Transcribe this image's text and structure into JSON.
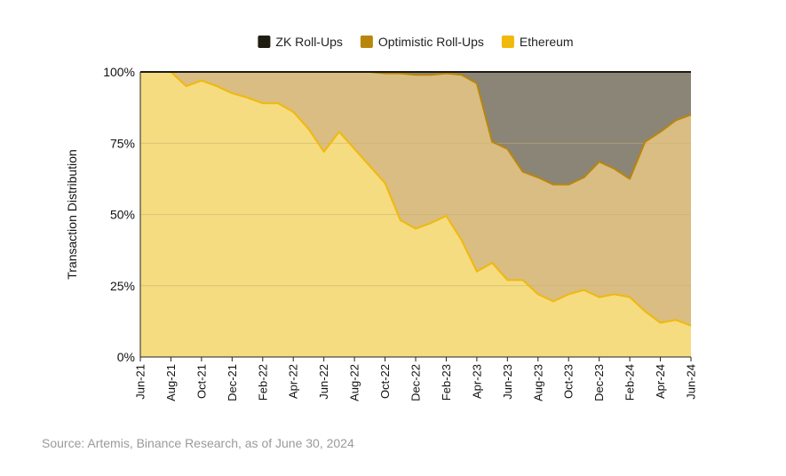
{
  "legend": [
    {
      "label": "ZK Roll-Ups",
      "color": "#1f1d12"
    },
    {
      "label": "Optimistic Roll-Ups",
      "color": "#b8860b"
    },
    {
      "label": "Ethereum",
      "color": "#f0b90b"
    }
  ],
  "source": "Source: Artemis, Binance Research, as of June 30, 2024",
  "chart_data": {
    "type": "area",
    "stacked": true,
    "ylabel": "Transaction Distribution",
    "xlabel": "",
    "ylim": [
      0,
      100
    ],
    "y_ticks": [
      "0%",
      "25%",
      "50%",
      "75%",
      "100%"
    ],
    "x": [
      "Jun-21",
      "Jul-21",
      "Aug-21",
      "Sep-21",
      "Oct-21",
      "Nov-21",
      "Dec-21",
      "Jan-22",
      "Feb-22",
      "Mar-22",
      "Apr-22",
      "May-22",
      "Jun-22",
      "Jul-22",
      "Aug-22",
      "Sep-22",
      "Oct-22",
      "Nov-22",
      "Dec-22",
      "Jan-23",
      "Feb-23",
      "Mar-23",
      "Apr-23",
      "May-23",
      "Jun-23",
      "Jul-23",
      "Aug-23",
      "Sep-23",
      "Oct-23",
      "Nov-23",
      "Dec-23",
      "Jan-24",
      "Feb-24",
      "Mar-24",
      "Apr-24",
      "May-24",
      "Jun-24"
    ],
    "x_tick_labels": [
      "Jun-21",
      "Aug-21",
      "Oct-21",
      "Dec-21",
      "Feb-22",
      "Apr-22",
      "Jun-22",
      "Aug-22",
      "Oct-22",
      "Dec-22",
      "Feb-23",
      "Apr-23",
      "Jun-23",
      "Aug-23",
      "Oct-23",
      "Dec-23",
      "Feb-24",
      "Apr-24",
      "Jun-24"
    ],
    "grid": true,
    "legend_position": "top-center",
    "series": [
      {
        "name": "Ethereum",
        "color": "#f0b90b",
        "fill": "#f5dc80",
        "values": [
          100,
          100,
          100,
          95,
          97,
          95,
          92.5,
          91,
          89,
          89,
          86,
          80,
          72,
          79,
          73,
          67,
          61,
          48,
          45,
          47,
          49.5,
          41,
          30,
          33,
          27,
          27,
          22,
          19.5,
          22,
          23.5,
          21,
          22,
          21,
          16,
          12,
          13,
          11
        ]
      },
      {
        "name": "Optimistic Roll-Ups",
        "color": "#b8860b",
        "fill": "#d9bd82",
        "values": [
          0,
          0,
          0,
          5,
          3,
          5,
          7.5,
          9,
          11,
          11,
          14,
          20,
          28,
          21,
          27,
          33,
          38.5,
          51.5,
          54,
          52,
          50,
          58,
          66,
          42.5,
          46,
          38,
          41,
          41,
          38.5,
          39.5,
          47.5,
          44,
          41.5,
          59.5,
          67,
          70,
          74
        ]
      },
      {
        "name": "ZK Roll-Ups",
        "color": "#1f1d12",
        "fill": "#8b8578",
        "values": [
          0,
          0,
          0,
          0,
          0,
          0,
          0,
          0,
          0,
          0,
          0,
          0,
          0,
          0,
          0,
          0,
          0.5,
          0.5,
          1,
          1,
          0.5,
          1,
          4,
          24.5,
          27,
          35,
          37,
          39.5,
          39.5,
          37,
          31.5,
          34,
          37.5,
          24.5,
          21,
          17,
          15
        ]
      }
    ]
  }
}
